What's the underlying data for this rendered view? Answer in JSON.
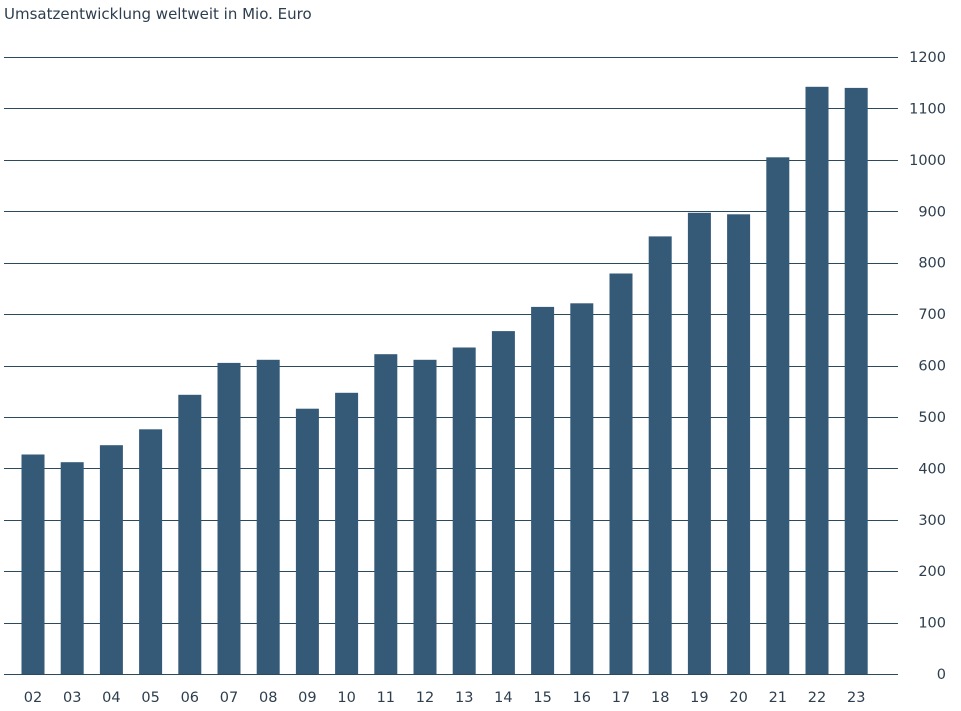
{
  "chart_data": {
    "type": "bar",
    "title": "Umsatzentwicklung weltweit in Mio. Euro",
    "xlabel": "",
    "ylabel": "",
    "categories": [
      "02",
      "03",
      "04",
      "05",
      "06",
      "07",
      "08",
      "09",
      "10",
      "11",
      "12",
      "13",
      "14",
      "15",
      "16",
      "17",
      "18",
      "19",
      "20",
      "21",
      "22",
      "23"
    ],
    "values": [
      427,
      412,
      445,
      476,
      543,
      605,
      611,
      516,
      547,
      622,
      611,
      635,
      667,
      714,
      721,
      779,
      851,
      897,
      894,
      1005,
      1142,
      1140
    ],
    "ylim": [
      0,
      1200
    ],
    "yticks": [
      0,
      100,
      200,
      300,
      400,
      500,
      600,
      700,
      800,
      900,
      1000,
      1100,
      1200
    ],
    "y_axis_position": "right",
    "grid": true,
    "bar_color": "#355a78",
    "grid_color": "#2b4a5e",
    "text_color": "#2d3e4e"
  }
}
